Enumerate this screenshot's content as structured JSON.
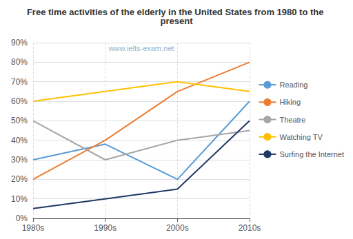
{
  "chart_data": {
    "type": "line",
    "title": "Free time activities of the elderly in the United States from 1980 to the present",
    "annotations": [
      "www.ielts-exam.net"
    ],
    "categories": [
      "1980s",
      "1990s",
      "2000s",
      "2010s"
    ],
    "series": [
      {
        "name": "Reading",
        "color": "#5B9BD5",
        "values": [
          30,
          38,
          20,
          60
        ]
      },
      {
        "name": "Hiking",
        "color": "#ED7D31",
        "values": [
          20,
          40,
          65,
          80
        ]
      },
      {
        "name": "Theatre",
        "color": "#A5A5A5",
        "values": [
          50,
          30,
          40,
          45
        ]
      },
      {
        "name": "Watching TV",
        "color": "#FFC000",
        "values": [
          60,
          65,
          70,
          65
        ]
      },
      {
        "name": "Surfing the Internet",
        "color": "#203864",
        "values": [
          5,
          10,
          15,
          50
        ]
      }
    ],
    "ylim": [
      0,
      90
    ],
    "yticks": [
      {
        "value": 0,
        "label": "0%"
      },
      {
        "value": 10,
        "label": "10%"
      },
      {
        "value": 20,
        "label": "20%"
      },
      {
        "value": 30,
        "label": "30%"
      },
      {
        "value": 40,
        "label": "40%"
      },
      {
        "value": 50,
        "label": "50%"
      },
      {
        "value": 60,
        "label": "60%"
      },
      {
        "value": 70,
        "label": "70%"
      },
      {
        "value": 80,
        "label": "80%"
      },
      {
        "value": 90,
        "label": "90%"
      }
    ],
    "grid": true,
    "legend": "right"
  }
}
